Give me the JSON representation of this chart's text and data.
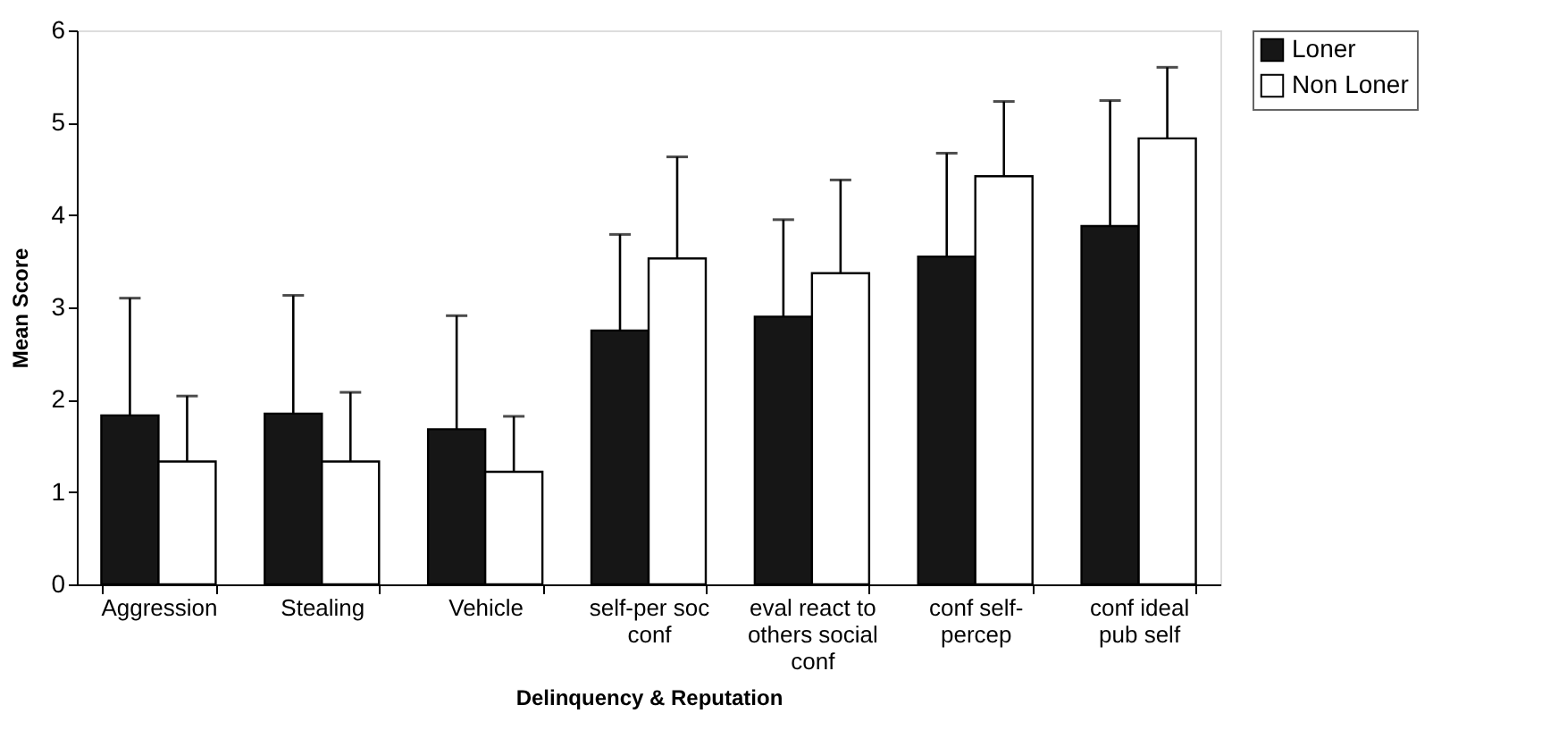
{
  "chart_data": {
    "type": "bar",
    "xlabel": "Delinquency & Reputation",
    "ylabel": "Mean Score",
    "categories": [
      "Aggression",
      "Stealing",
      "Vehicle",
      "self-per soc conf",
      "eval react to others social conf",
      "conf self-percep",
      "conf ideal pub self"
    ],
    "series": [
      {
        "name": "Loner",
        "color": "#161616",
        "values": [
          1.83,
          1.85,
          1.68,
          2.75,
          2.9,
          3.55,
          3.88
        ],
        "errors": [
          [
            1.83,
            3.1
          ],
          [
            1.85,
            3.13
          ],
          [
            1.68,
            2.91
          ],
          [
            2.75,
            3.79
          ],
          [
            2.9,
            3.95
          ],
          [
            3.55,
            4.67
          ],
          [
            3.88,
            5.24
          ]
        ]
      },
      {
        "name": "Non Loner",
        "color": "#ffffff",
        "values": [
          1.33,
          1.33,
          1.22,
          3.53,
          3.37,
          4.42,
          4.83
        ],
        "errors": [
          [
            1.33,
            2.04
          ],
          [
            1.33,
            2.08
          ],
          [
            1.22,
            1.82
          ],
          [
            3.53,
            4.63
          ],
          [
            3.37,
            4.38
          ],
          [
            4.42,
            5.23
          ],
          [
            4.83,
            5.6
          ]
        ]
      }
    ],
    "ylim": [
      0,
      6
    ],
    "yticks": [
      0,
      1,
      2,
      3,
      4,
      5,
      6
    ],
    "grid": false,
    "legend": "right"
  }
}
